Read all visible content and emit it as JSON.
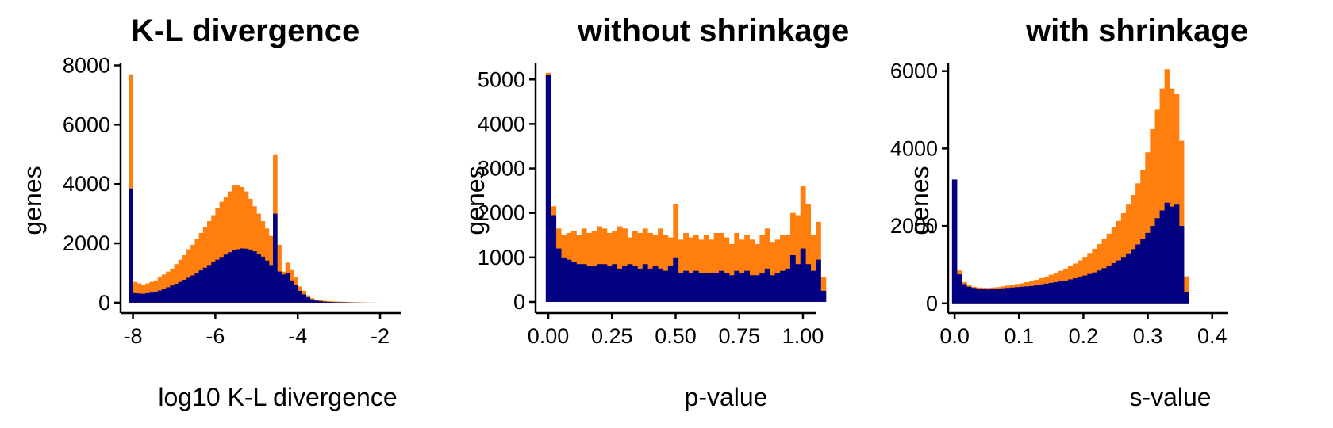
{
  "colors": {
    "all_genes": "#FF7F0E",
    "subset": "#000080"
  },
  "chart_data": [
    {
      "type": "histogram",
      "title": "K-L divergence",
      "xlabel": "log10 K-L divergence",
      "ylabel": "genes",
      "xlim": [
        -8.3,
        -1.5
      ],
      "ylim": [
        -350,
        8200
      ],
      "xticks": [
        -8,
        -6,
        -4,
        -2
      ],
      "xtick_labels": [
        "-8",
        "-6",
        "-4",
        "-2"
      ],
      "yticks": [
        0,
        2000,
        4000,
        6000,
        8000
      ],
      "ytick_labels": [
        "0",
        "2000",
        "4000",
        "6000",
        "8000"
      ],
      "bin_start": -8.1,
      "bin_width": 0.1,
      "series": [
        {
          "color": "#FF7F0E",
          "values": [
            7700,
            700,
            650,
            600,
            650,
            700,
            750,
            850,
            950,
            1050,
            1150,
            1300,
            1450,
            1600,
            1800,
            1950,
            2150,
            2350,
            2550,
            2750,
            2950,
            3200,
            3400,
            3550,
            3750,
            3950,
            3950,
            3900,
            3750,
            3500,
            3250,
            3000,
            2750,
            2500,
            2250,
            5000,
            1950,
            1050,
            1350,
            1100,
            850,
            550,
            400,
            250,
            150,
            100,
            80,
            60,
            50,
            40,
            35,
            30,
            25,
            20,
            15,
            10,
            8,
            6,
            4,
            2,
            1,
            0,
            0,
            0,
            0
          ]
        },
        {
          "color": "#000080",
          "values": [
            3850,
            320,
            310,
            300,
            320,
            340,
            370,
            410,
            460,
            520,
            580,
            640,
            700,
            770,
            840,
            920,
            1000,
            1090,
            1180,
            1270,
            1360,
            1450,
            1540,
            1620,
            1700,
            1760,
            1800,
            1830,
            1820,
            1790,
            1730,
            1650,
            1550,
            1420,
            1270,
            3000,
            1050,
            950,
            1000,
            750,
            600,
            400,
            280,
            180,
            110,
            70,
            50,
            35,
            25,
            20,
            15,
            12,
            10,
            8,
            6,
            4,
            3,
            2,
            1,
            1,
            0,
            0,
            0,
            0,
            0
          ]
        }
      ]
    },
    {
      "type": "histogram",
      "title": "without shrinkage",
      "xlabel": "p-value",
      "ylabel": "genes",
      "xlim": [
        -0.05,
        1.05
      ],
      "ylim": [
        -250,
        5450
      ],
      "xticks": [
        0,
        0.25,
        0.5,
        0.75,
        1
      ],
      "xtick_labels": [
        "0.00",
        "0.25",
        "0.50",
        "0.75",
        "1.00"
      ],
      "yticks": [
        0,
        1000,
        2000,
        3000,
        4000,
        5000
      ],
      "ytick_labels": [
        "0",
        "1000",
        "2000",
        "3000",
        "4000",
        "5000"
      ],
      "bin_start": -0.01,
      "bin_width": 0.02,
      "series": [
        {
          "color": "#FF7F0E",
          "values": [
            5150,
            2150,
            1650,
            1500,
            1550,
            1600,
            1500,
            1650,
            1550,
            1600,
            1700,
            1650,
            1550,
            1600,
            1700,
            1650,
            1450,
            1600,
            1550,
            1650,
            1550,
            1500,
            1650,
            1500,
            1450,
            2200,
            1400,
            1550,
            1450,
            1500,
            1400,
            1500,
            1400,
            1550,
            1550,
            1450,
            1300,
            1550,
            1400,
            1500,
            1400,
            1300,
            1500,
            1650,
            1350,
            1400,
            1500,
            1500,
            2000,
            1950,
            2600,
            2200,
            1500,
            1800,
            550
          ]
        },
        {
          "color": "#000080",
          "values": [
            5100,
            1950,
            1200,
            1000,
            950,
            900,
            850,
            850,
            800,
            800,
            850,
            850,
            800,
            850,
            750,
            800,
            850,
            800,
            750,
            850,
            750,
            800,
            750,
            700,
            800,
            1000,
            650,
            700,
            650,
            700,
            650,
            650,
            650,
            650,
            700,
            650,
            600,
            700,
            650,
            700,
            600,
            600,
            650,
            750,
            600,
            650,
            700,
            750,
            1050,
            850,
            1200,
            850,
            700,
            950,
            250
          ]
        }
      ]
    },
    {
      "type": "histogram",
      "title": "with shrinkage",
      "xlabel": "s-value",
      "ylabel": "genes",
      "xlim": [
        -0.01,
        0.425
      ],
      "ylim": [
        -250,
        6300
      ],
      "xticks": [
        0,
        0.1,
        0.2,
        0.3,
        0.4
      ],
      "xtick_labels": [
        "0.0",
        "0.1",
        "0.2",
        "0.3",
        "0.4"
      ],
      "yticks": [
        0,
        2000,
        4000,
        6000
      ],
      "ytick_labels": [
        "0",
        "2000",
        "4000",
        "6000"
      ],
      "bin_start": -0.004,
      "bin_width": 0.0075,
      "series": [
        {
          "color": "#FF7F0E",
          "values": [
            3200,
            850,
            550,
            480,
            430,
            410,
            400,
            400,
            410,
            420,
            440,
            460,
            480,
            500,
            520,
            550,
            580,
            610,
            650,
            690,
            740,
            790,
            840,
            900,
            960,
            1030,
            1110,
            1200,
            1300,
            1410,
            1530,
            1660,
            1800,
            1960,
            2130,
            2330,
            2550,
            2800,
            3100,
            3450,
            3900,
            4500,
            5000,
            5550,
            6050,
            5550,
            5400,
            4200,
            700
          ]
        },
        {
          "color": "#000080",
          "values": [
            3200,
            750,
            500,
            430,
            400,
            380,
            370,
            360,
            370,
            380,
            390,
            400,
            410,
            420,
            430,
            440,
            450,
            470,
            490,
            510,
            530,
            550,
            570,
            590,
            620,
            650,
            680,
            720,
            760,
            800,
            850,
            910,
            970,
            1040,
            1110,
            1200,
            1290,
            1400,
            1520,
            1660,
            1820,
            2000,
            2200,
            2400,
            2600,
            2500,
            2550,
            2000,
            300
          ]
        }
      ]
    }
  ]
}
